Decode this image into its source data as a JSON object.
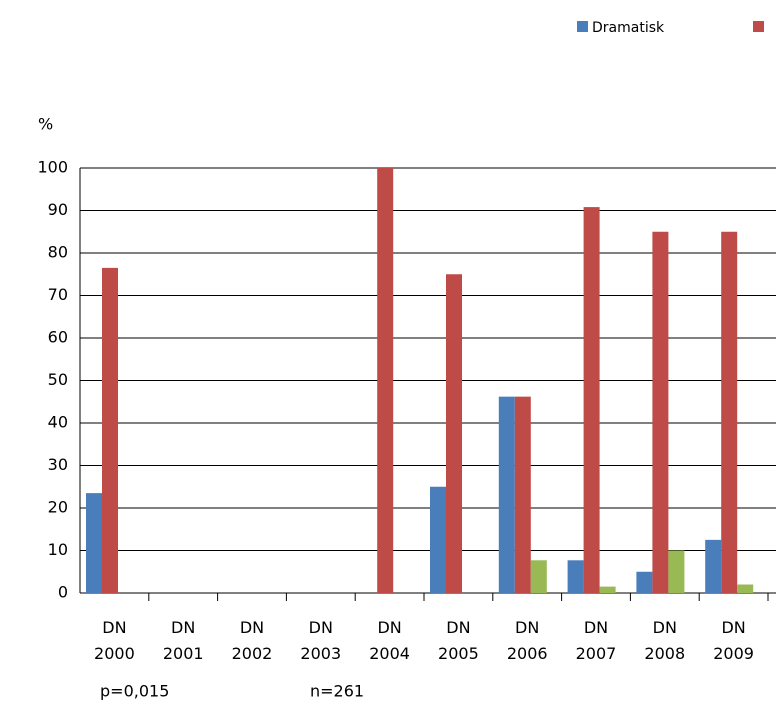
{
  "chart_data": {
    "type": "bar",
    "ylabel": "%",
    "categories": [
      "DN 2000",
      "DN 2001",
      "DN 2002",
      "DN 2003",
      "DN 2004",
      "DN 2005",
      "DN 2006",
      "DN 2007",
      "DN 2008",
      "DN 2009"
    ],
    "series": [
      {
        "name": "Dramatisk",
        "color": "#4a7ebb",
        "values": [
          23.5,
          null,
          null,
          null,
          0,
          25,
          46.2,
          7.7,
          5,
          12.5
        ]
      },
      {
        "color": "#be4b48",
        "values": [
          76.5,
          null,
          null,
          null,
          100,
          75,
          46.2,
          90.8,
          85,
          85
        ]
      },
      {
        "color": "#98b954",
        "values": [
          0,
          null,
          null,
          null,
          0,
          0,
          7.7,
          1.5,
          10,
          2
        ]
      }
    ],
    "ylim": [
      0,
      100
    ],
    "yticks": [
      0,
      10,
      20,
      30,
      40,
      50,
      60,
      70,
      80,
      90,
      100
    ],
    "grid": true,
    "annotations": [
      "p=0,015",
      "n=261"
    ]
  }
}
